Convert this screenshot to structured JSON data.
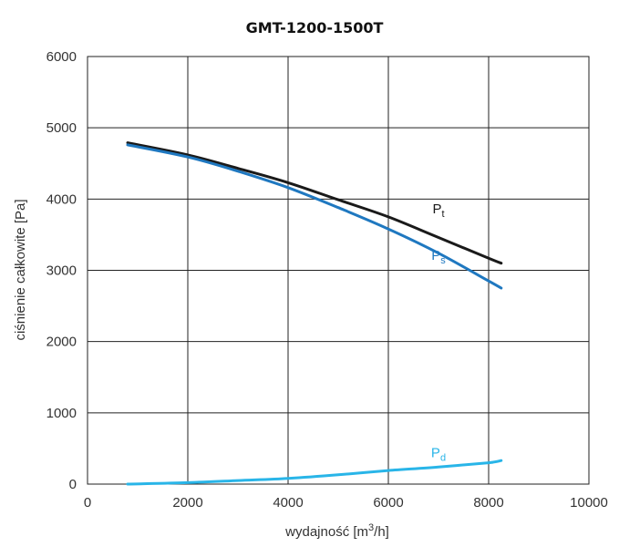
{
  "chart_data": {
    "type": "line",
    "title": "GMT-1200-1500T",
    "xlabel": "wydajność [m³/h]",
    "xlabel_main": "wydajność [m",
    "xlabel_sup": "3",
    "xlabel_tail": "/h]",
    "ylabel": "ciśnienie całkowite [Pa]",
    "xlim": [
      0,
      10000
    ],
    "ylim": [
      0,
      6000
    ],
    "xticks": [
      0,
      2000,
      4000,
      6000,
      8000,
      10000
    ],
    "yticks": [
      0,
      1000,
      2000,
      3000,
      4000,
      5000,
      6000
    ],
    "xtick_labels": [
      "0",
      "2000",
      "4000",
      "6000",
      "8000",
      "10000"
    ],
    "ytick_labels": [
      "0",
      "1000",
      "2000",
      "3000",
      "4000",
      "5000",
      "6000"
    ],
    "grid": true,
    "series": [
      {
        "name": "Pt",
        "label_main": "P",
        "label_sub": "t",
        "color": "#1a1a1a",
        "x": [
          800,
          2000,
          3000,
          4000,
          5000,
          6000,
          7000,
          8000,
          8250
        ],
        "y": [
          4790,
          4620,
          4430,
          4230,
          3990,
          3750,
          3460,
          3170,
          3100
        ]
      },
      {
        "name": "Ps",
        "label_main": "P",
        "label_sub": "s",
        "color": "#1f78c0",
        "x": [
          800,
          2000,
          3000,
          4000,
          5000,
          6000,
          7000,
          8000,
          8250
        ],
        "y": [
          4760,
          4590,
          4390,
          4160,
          3880,
          3580,
          3240,
          2850,
          2750
        ]
      },
      {
        "name": "Pd",
        "label_main": "P",
        "label_sub": "d",
        "color": "#29b5e8",
        "x": [
          800,
          2000,
          3000,
          4000,
          5000,
          6000,
          7000,
          8000,
          8250
        ],
        "y": [
          0,
          20,
          50,
          80,
          130,
          190,
          240,
          300,
          330
        ]
      }
    ]
  }
}
